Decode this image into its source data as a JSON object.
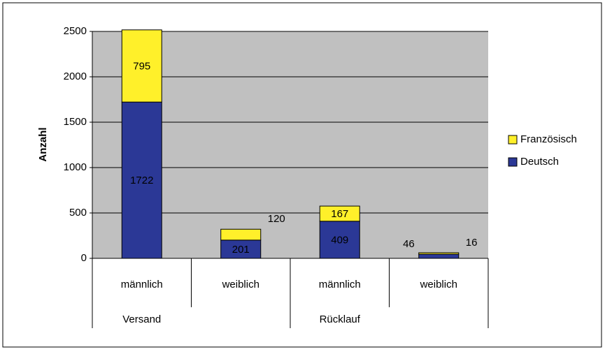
{
  "chart_data": {
    "type": "stacked_bar",
    "y_label": "Anzahl",
    "categories": [
      "männlich",
      "weiblich",
      "männlich",
      "weiblich"
    ],
    "groups": [
      {
        "label": "Versand",
        "span": [
          0,
          1
        ]
      },
      {
        "label": "Rücklauf",
        "span": [
          2,
          3
        ]
      }
    ],
    "series": [
      {
        "name": "Deutsch",
        "color": "#2b3896",
        "values": [
          1722,
          201,
          409,
          46
        ]
      },
      {
        "name": "Französisch",
        "color": "#fff02a",
        "values": [
          795,
          120,
          167,
          16
        ]
      }
    ],
    "ylim": [
      0,
      2500
    ],
    "yticks": [
      0,
      500,
      1000,
      1500,
      2000,
      2500
    ],
    "grid": true,
    "legend": "right"
  }
}
